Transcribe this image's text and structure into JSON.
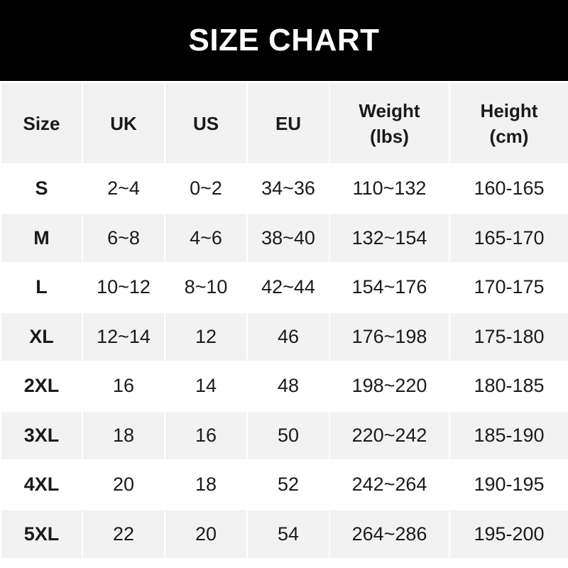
{
  "title": "SIZE CHART",
  "columns": [
    {
      "line1": "Size",
      "line2": ""
    },
    {
      "line1": "UK",
      "line2": ""
    },
    {
      "line1": "US",
      "line2": ""
    },
    {
      "line1": "EU",
      "line2": ""
    },
    {
      "line1": "Weight",
      "line2": "(lbs)"
    },
    {
      "line1": "Height",
      "line2": "(cm)"
    }
  ],
  "rows": [
    [
      "S",
      "2~4",
      "0~2",
      "34~36",
      "110~132",
      "160-165"
    ],
    [
      "M",
      "6~8",
      "4~6",
      "38~40",
      "132~154",
      "165-170"
    ],
    [
      "L",
      "10~12",
      "8~10",
      "42~44",
      "154~176",
      "170-175"
    ],
    [
      "XL",
      "12~14",
      "12",
      "46",
      "176~198",
      "175-180"
    ],
    [
      "2XL",
      "16",
      "14",
      "48",
      "198~220",
      "180-185"
    ],
    [
      "3XL",
      "18",
      "16",
      "50",
      "220~242",
      "185-190"
    ],
    [
      "4XL",
      "20",
      "18",
      "52",
      "242~264",
      "190-195"
    ],
    [
      "5XL",
      "22",
      "20",
      "54",
      "264~286",
      "195-200"
    ]
  ],
  "colors": {
    "banner": "#000000",
    "header_bg": "#f2f2f2",
    "stripe": "#f2f2f2",
    "text": "#1a1a1a"
  }
}
